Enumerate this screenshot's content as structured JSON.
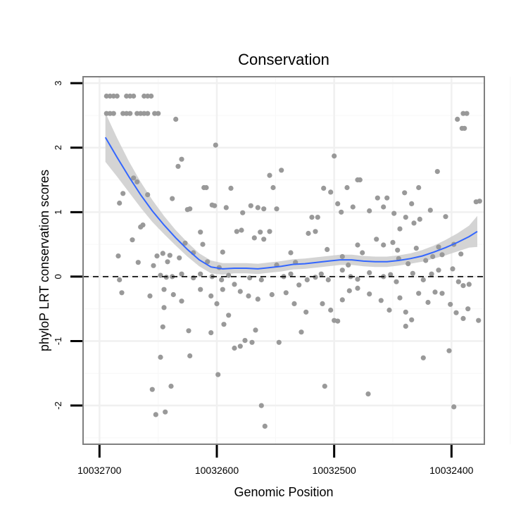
{
  "chart_data": {
    "type": "scatter",
    "title": "Conservation",
    "xlabel": "Genomic Position",
    "ylabel": "phyloP LRT conservation scores",
    "x_reversed": true,
    "xlim": [
      10032714,
      10032372
    ],
    "ylim": [
      -2.6,
      3.1
    ],
    "x_ticks": [
      10032700,
      10032600,
      10032500,
      10032400
    ],
    "x_tick_labels": [
      "10032700",
      "10032600",
      "10032500",
      "10032400"
    ],
    "y_ticks": [
      3,
      2,
      1,
      0,
      -1,
      -2
    ],
    "y_tick_labels": [
      "3",
      "2",
      "1",
      "0",
      "-1",
      "-2"
    ],
    "reference_line": {
      "y": 0,
      "style": "dashed"
    },
    "grid": true,
    "point_color": "#999999",
    "smooth_color": "#3366ff",
    "band_color": "#cccccc",
    "points": [
      [
        10032694,
        2.8
      ],
      [
        10032691,
        2.8
      ],
      [
        10032688,
        2.8
      ],
      [
        10032685,
        2.8
      ],
      [
        10032677,
        2.8
      ],
      [
        10032674,
        2.8
      ],
      [
        10032671,
        2.8
      ],
      [
        10032662,
        2.8
      ],
      [
        10032659,
        2.8
      ],
      [
        10032656,
        2.8
      ],
      [
        10032694,
        2.53
      ],
      [
        10032691,
        2.53
      ],
      [
        10032688,
        2.53
      ],
      [
        10032680,
        2.53
      ],
      [
        10032677,
        2.53
      ],
      [
        10032674,
        2.53
      ],
      [
        10032668,
        2.53
      ],
      [
        10032665,
        2.53
      ],
      [
        10032662,
        2.53
      ],
      [
        10032659,
        2.53
      ],
      [
        10032653,
        2.53
      ],
      [
        10032650,
        2.53
      ],
      [
        10032635,
        2.44
      ],
      [
        10032601,
        2.04
      ],
      [
        10032500,
        1.87
      ],
      [
        10032390,
        2.53
      ],
      [
        10032387,
        2.53
      ],
      [
        10032391,
        2.3
      ],
      [
        10032389,
        2.3
      ],
      [
        10032395,
        2.44
      ],
      [
        10032668,
        1.47
      ],
      [
        10032680,
        1.29
      ],
      [
        10032683,
        1.14
      ],
      [
        10032659,
        1.27
      ],
      [
        10032671,
        1.53
      ],
      [
        10032630,
        1.82
      ],
      [
        10032633,
        1.71
      ],
      [
        10032638,
        1.21
      ],
      [
        10032623,
        1.05
      ],
      [
        10032625,
        1.04
      ],
      [
        10032611,
        1.38
      ],
      [
        10032609,
        1.38
      ],
      [
        10032602,
        1.1
      ],
      [
        10032604,
        1.11
      ],
      [
        10032592,
        1.07
      ],
      [
        10032588,
        1.37
      ],
      [
        10032578,
        0.99
      ],
      [
        10032571,
        1.1
      ],
      [
        10032565,
        1.07
      ],
      [
        10032560,
        1.05
      ],
      [
        10032555,
        1.57
      ],
      [
        10032552,
        1.38
      ],
      [
        10032549,
        1.05
      ],
      [
        10032545,
        1.65
      ],
      [
        10032519,
        0.92
      ],
      [
        10032514,
        0.92
      ],
      [
        10032509,
        1.37
      ],
      [
        10032503,
        1.31
      ],
      [
        10032497,
        1.13
      ],
      [
        10032494,
        1.0
      ],
      [
        10032489,
        1.38
      ],
      [
        10032484,
        1.08
      ],
      [
        10032480,
        1.5
      ],
      [
        10032478,
        1.5
      ],
      [
        10032470,
        1.02
      ],
      [
        10032463,
        1.22
      ],
      [
        10032458,
        1.08
      ],
      [
        10032455,
        1.22
      ],
      [
        10032449,
        0.98
      ],
      [
        10032440,
        1.3
      ],
      [
        10032434,
        1.13
      ],
      [
        10032428,
        1.38
      ],
      [
        10032412,
        1.63
      ],
      [
        10032418,
        1.03
      ],
      [
        10032379,
        1.16
      ],
      [
        10032376,
        1.17
      ],
      [
        10032663,
        0.8
      ],
      [
        10032665,
        0.77
      ],
      [
        10032672,
        0.57
      ],
      [
        10032684,
        0.32
      ],
      [
        10032651,
        0.32
      ],
      [
        10032646,
        0.36
      ],
      [
        10032642,
        0.23
      ],
      [
        10032640,
        0.33
      ],
      [
        10032632,
        0.29
      ],
      [
        10032627,
        0.52
      ],
      [
        10032620,
        0.37
      ],
      [
        10032614,
        0.69
      ],
      [
        10032612,
        0.5
      ],
      [
        10032608,
        0.23
      ],
      [
        10032598,
        0.14
      ],
      [
        10032595,
        0.38
      ],
      [
        10032583,
        0.7
      ],
      [
        10032579,
        0.72
      ],
      [
        10032568,
        0.6
      ],
      [
        10032563,
        0.69
      ],
      [
        10032560,
        0.58
      ],
      [
        10032555,
        0.7
      ],
      [
        10032549,
        0.18
      ],
      [
        10032537,
        0.37
      ],
      [
        10032533,
        0.22
      ],
      [
        10032522,
        0.67
      ],
      [
        10032516,
        0.7
      ],
      [
        10032506,
        0.42
      ],
      [
        10032493,
        0.31
      ],
      [
        10032488,
        0.18
      ],
      [
        10032480,
        0.49
      ],
      [
        10032476,
        0.37
      ],
      [
        10032464,
        0.58
      ],
      [
        10032458,
        0.49
      ],
      [
        10032450,
        0.53
      ],
      [
        10032445,
        0.28
      ],
      [
        10032437,
        0.2
      ],
      [
        10032430,
        0.44
      ],
      [
        10032422,
        0.25
      ],
      [
        10032416,
        0.31
      ],
      [
        10032411,
        0.46
      ],
      [
        10032398,
        0.5
      ],
      [
        10032392,
        0.35
      ],
      [
        10032408,
        0.34
      ],
      [
        10032427,
        0.89
      ],
      [
        10032432,
        0.83
      ],
      [
        10032439,
        0.92
      ],
      [
        10032444,
        0.74
      ],
      [
        10032446,
        0.41
      ],
      [
        10032405,
        0.93
      ],
      [
        10032654,
        0.17
      ],
      [
        10032667,
        0.22
      ],
      [
        10032648,
        0.02
      ],
      [
        10032643,
        -0.01
      ],
      [
        10032638,
        0.0
      ],
      [
        10032630,
        0.04
      ],
      [
        10032620,
        -0.02
      ],
      [
        10032614,
        0.04
      ],
      [
        10032604,
        0.0
      ],
      [
        10032596,
        -0.05
      ],
      [
        10032590,
        0.02
      ],
      [
        10032585,
        -0.12
      ],
      [
        10032572,
        -0.02
      ],
      [
        10032562,
        -0.05
      ],
      [
        10032543,
        0.0
      ],
      [
        10032537,
        0.04
      ],
      [
        10032530,
        -0.13
      ],
      [
        10032523,
        -0.05
      ],
      [
        10032516,
        -0.01
      ],
      [
        10032511,
        0.04
      ],
      [
        10032505,
        -0.05
      ],
      [
        10032493,
        0.1
      ],
      [
        10032486,
        0.0
      ],
      [
        10032480,
        -0.04
      ],
      [
        10032470,
        0.06
      ],
      [
        10032458,
        0.0
      ],
      [
        10032452,
        0.03
      ],
      [
        10032447,
        -0.08
      ],
      [
        10032433,
        0.05
      ],
      [
        10032424,
        -0.05
      ],
      [
        10032417,
        0.04
      ],
      [
        10032411,
        0.1
      ],
      [
        10032399,
        0.12
      ],
      [
        10032394,
        -0.08
      ],
      [
        10032390,
        -0.14
      ],
      [
        10032385,
        -0.12
      ],
      [
        10032683,
        -0.05
      ],
      [
        10032681,
        -0.25
      ],
      [
        10032657,
        -0.3
      ],
      [
        10032645,
        -0.2
      ],
      [
        10032637,
        -0.28
      ],
      [
        10032630,
        -0.38
      ],
      [
        10032624,
        -0.84
      ],
      [
        10032614,
        -0.2
      ],
      [
        10032605,
        -0.3
      ],
      [
        10032600,
        -0.42
      ],
      [
        10032595,
        -0.2
      ],
      [
        10032590,
        -0.6
      ],
      [
        10032580,
        -0.23
      ],
      [
        10032573,
        -0.3
      ],
      [
        10032565,
        -0.35
      ],
      [
        10032553,
        -0.28
      ],
      [
        10032541,
        -0.25
      ],
      [
        10032534,
        -0.42
      ],
      [
        10032524,
        -0.55
      ],
      [
        10032510,
        -0.42
      ],
      [
        10032503,
        -0.52
      ],
      [
        10032500,
        -0.68
      ],
      [
        10032493,
        -0.36
      ],
      [
        10032487,
        -0.22
      ],
      [
        10032480,
        -0.18
      ],
      [
        10032470,
        -0.27
      ],
      [
        10032460,
        -0.37
      ],
      [
        10032453,
        -0.52
      ],
      [
        10032444,
        -0.33
      ],
      [
        10032439,
        -0.55
      ],
      [
        10032434,
        -0.67
      ],
      [
        10032428,
        -0.26
      ],
      [
        10032420,
        -0.4
      ],
      [
        10032414,
        -0.24
      ],
      [
        10032408,
        -0.26
      ],
      [
        10032401,
        -0.43
      ],
      [
        10032396,
        -0.56
      ],
      [
        10032390,
        -0.65
      ],
      [
        10032386,
        -0.5
      ],
      [
        10032377,
        -0.68
      ],
      [
        10032645,
        -0.48
      ],
      [
        10032646,
        -0.78
      ],
      [
        10032648,
        -1.25
      ],
      [
        10032605,
        -0.87
      ],
      [
        10032594,
        -0.74
      ],
      [
        10032576,
        -0.99
      ],
      [
        10032570,
        -1.02
      ],
      [
        10032567,
        -0.83
      ],
      [
        10032547,
        -1.02
      ],
      [
        10032528,
        -0.86
      ],
      [
        10032497,
        -0.69
      ],
      [
        10032439,
        -0.77
      ],
      [
        10032424,
        -1.26
      ],
      [
        10032402,
        -1.15
      ],
      [
        10032623,
        -1.23
      ],
      [
        10032599,
        -1.52
      ],
      [
        10032585,
        -1.11
      ],
      [
        10032580,
        -1.08
      ],
      [
        10032655,
        -1.75
      ],
      [
        10032652,
        -2.14
      ],
      [
        10032644,
        -2.1
      ],
      [
        10032639,
        -1.7
      ],
      [
        10032562,
        -2.0
      ],
      [
        10032559,
        -2.32
      ],
      [
        10032508,
        -1.7
      ],
      [
        10032471,
        -1.82
      ],
      [
        10032398,
        -2.02
      ]
    ],
    "smooth": [
      [
        10032695,
        2.16
      ],
      [
        10032685,
        1.85
      ],
      [
        10032675,
        1.55
      ],
      [
        10032665,
        1.27
      ],
      [
        10032655,
        1.02
      ],
      [
        10032645,
        0.8
      ],
      [
        10032635,
        0.6
      ],
      [
        10032625,
        0.42
      ],
      [
        10032615,
        0.26
      ],
      [
        10032605,
        0.15
      ],
      [
        10032595,
        0.12
      ],
      [
        10032585,
        0.13
      ],
      [
        10032575,
        0.13
      ],
      [
        10032565,
        0.12
      ],
      [
        10032555,
        0.14
      ],
      [
        10032545,
        0.16
      ],
      [
        10032535,
        0.19
      ],
      [
        10032525,
        0.2
      ],
      [
        10032515,
        0.22
      ],
      [
        10032505,
        0.24
      ],
      [
        10032495,
        0.26
      ],
      [
        10032485,
        0.26
      ],
      [
        10032475,
        0.24
      ],
      [
        10032465,
        0.23
      ],
      [
        10032455,
        0.23
      ],
      [
        10032445,
        0.25
      ],
      [
        10032435,
        0.28
      ],
      [
        10032425,
        0.32
      ],
      [
        10032415,
        0.38
      ],
      [
        10032405,
        0.45
      ],
      [
        10032395,
        0.53
      ],
      [
        10032385,
        0.62
      ],
      [
        10032378,
        0.7
      ]
    ],
    "band_halfwidth": [
      0.38,
      0.3,
      0.24,
      0.2,
      0.17,
      0.14,
      0.12,
      0.11,
      0.1,
      0.1,
      0.09,
      0.08,
      0.08,
      0.08,
      0.08,
      0.08,
      0.08,
      0.08,
      0.08,
      0.08,
      0.08,
      0.08,
      0.08,
      0.08,
      0.08,
      0.08,
      0.08,
      0.09,
      0.1,
      0.12,
      0.14,
      0.17,
      0.24
    ]
  }
}
